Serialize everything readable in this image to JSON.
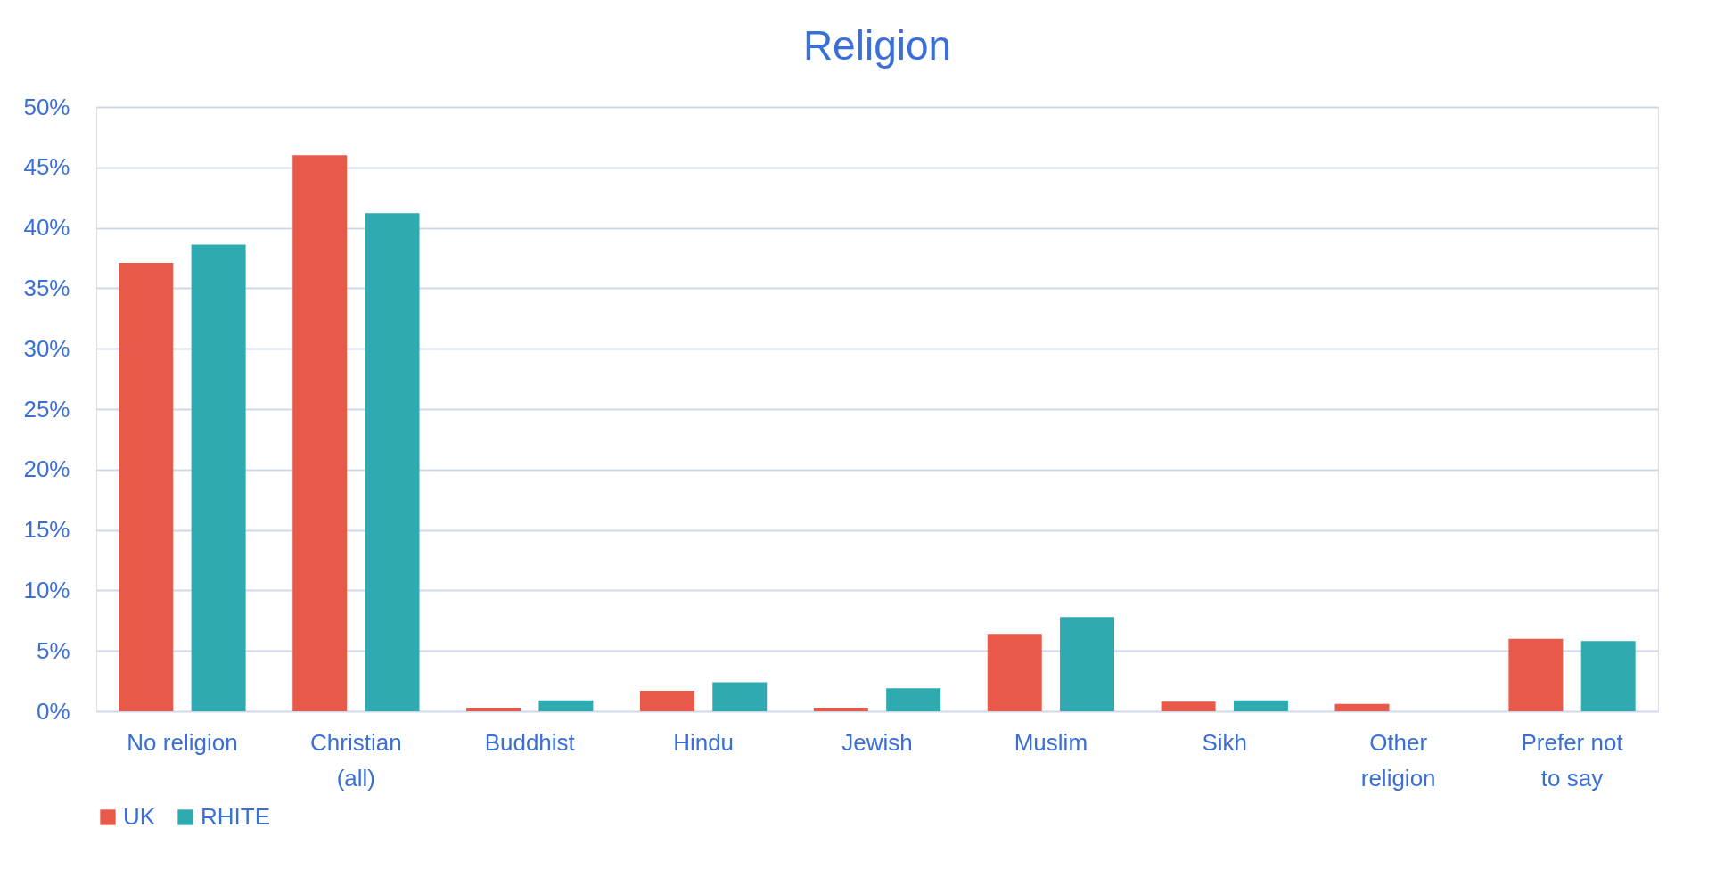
{
  "chart_data": {
    "type": "bar",
    "title": "Religion",
    "categories": [
      "No religion",
      "Christian\n(all)",
      "Buddhist",
      "Hindu",
      "Jewish",
      "Muslim",
      "Sikh",
      "Other\nreligion",
      "Prefer not\nto say"
    ],
    "series": [
      {
        "name": "UK",
        "color": "#e8594a",
        "values": [
          37.1,
          46.0,
          0.3,
          1.7,
          0.3,
          6.4,
          0.8,
          0.6,
          6.0
        ]
      },
      {
        "name": "RHITE",
        "color": "#2eaab0",
        "values": [
          38.6,
          41.2,
          0.9,
          2.4,
          1.9,
          7.8,
          0.9,
          0,
          5.8
        ]
      }
    ],
    "ylim": [
      0,
      50
    ],
    "yticks": [
      {
        "value": 0,
        "label": "0%"
      },
      {
        "value": 5,
        "label": "5%"
      },
      {
        "value": 10,
        "label": "10%"
      },
      {
        "value": 15,
        "label": "15%"
      },
      {
        "value": 20,
        "label": "20%"
      },
      {
        "value": 25,
        "label": "25%"
      },
      {
        "value": 30,
        "label": "30%"
      },
      {
        "value": 35,
        "label": "35%"
      },
      {
        "value": 40,
        "label": "40%"
      },
      {
        "value": 45,
        "label": "45%"
      },
      {
        "value": 50,
        "label": "50%"
      }
    ],
    "grid": "y",
    "legend": "bottom"
  }
}
